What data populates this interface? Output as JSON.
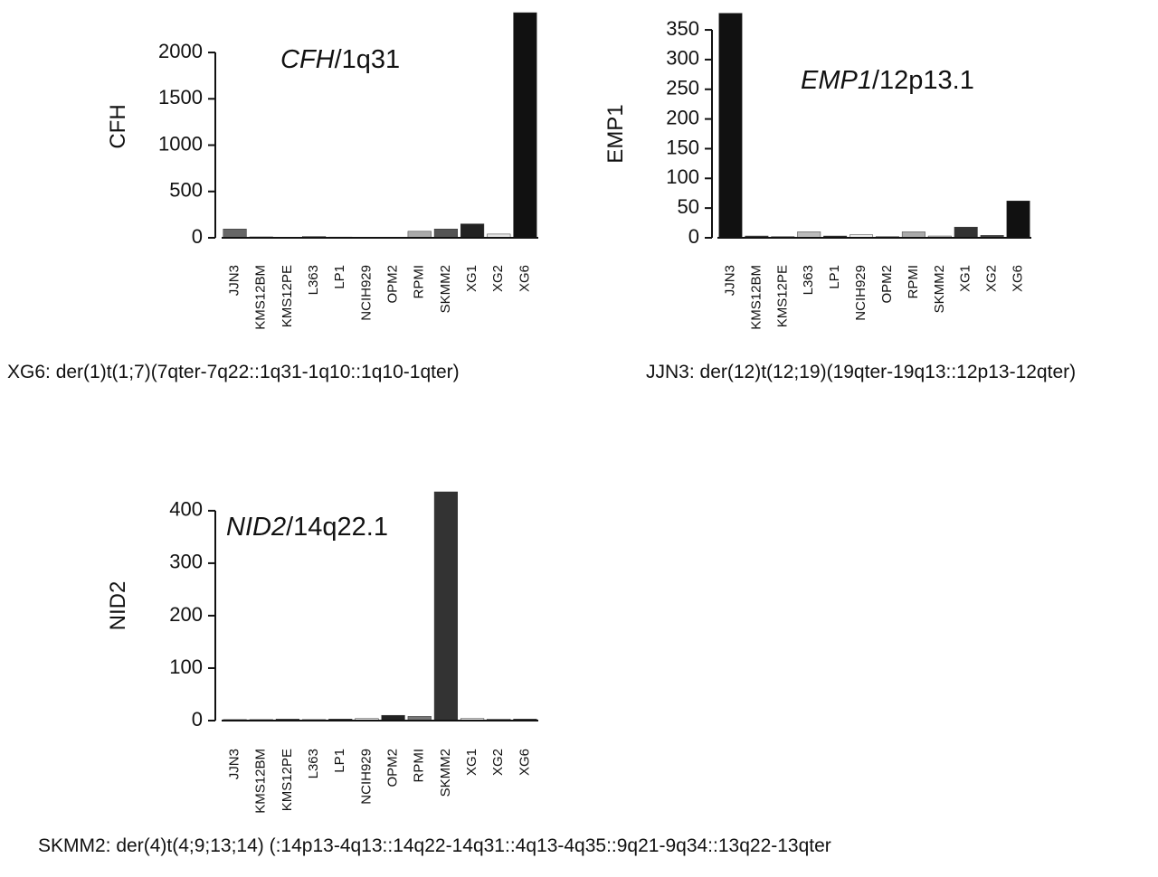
{
  "chart_data": [
    {
      "type": "bar",
      "title_italic": "CFH",
      "title_rest": "/1q31",
      "ylabel": "CFH",
      "caption": "XG6: der(1)t(1;7)(7qter-7q22::1q31-1q10::1q10-1qter)",
      "categories": [
        "JJN3",
        "KMS12BM",
        "KMS12PE",
        "L363",
        "LP1",
        "NCIH929",
        "OPM2",
        "RPMI",
        "SKMM2",
        "XG1",
        "XG2",
        "XG6"
      ],
      "values": [
        95,
        10,
        5,
        15,
        8,
        3,
        3,
        70,
        95,
        150,
        40,
        2430
      ],
      "colors": [
        "#666666",
        "#cccccc",
        "#dddddd",
        "#bbbbbb",
        "#999999",
        "#eeeeee",
        "#dddddd",
        "#aaaaaa",
        "#555555",
        "#222222",
        "#e5e5e5",
        "#111111"
      ],
      "ylim": [
        0,
        2430
      ],
      "yticks": [
        0,
        500,
        1000,
        1500,
        2000
      ]
    },
    {
      "type": "bar",
      "title_italic": "EMP1",
      "title_rest": "/12p13.1",
      "ylabel": "EMP1",
      "caption": "JJN3: der(12)t(12;19)(19qter-19q13::12p13-12qter)",
      "categories": [
        "JJN3",
        "KMS12BM",
        "KMS12PE",
        "L363",
        "LP1",
        "NCIH929",
        "OPM2",
        "RPMI",
        "SKMM2",
        "XG1",
        "XG2",
        "XG6"
      ],
      "values": [
        378,
        3,
        2,
        10,
        3,
        5,
        2,
        10,
        3,
        18,
        4,
        62
      ],
      "colors": [
        "#111111",
        "#333333",
        "#cccccc",
        "#bbbbbb",
        "#222222",
        "#eeeeee",
        "#dddddd",
        "#aaaaaa",
        "#cccccc",
        "#333333",
        "#444444",
        "#111111"
      ],
      "ylim": [
        0,
        379
      ],
      "yticks": [
        0,
        50,
        100,
        150,
        200,
        250,
        300,
        350
      ]
    },
    {
      "type": "bar",
      "title_italic": "NID2",
      "title_rest": "/14q22.1",
      "ylabel": "NID2",
      "caption": "SKMM2: der(4)t(4;9;13;14)  (:14p13-4q13::14q22-14q31::4q13-4q35::9q21-9q34::13q22-13qter",
      "categories": [
        "JJN3",
        "KMS12BM",
        "KMS12PE",
        "L363",
        "LP1",
        "NCIH929",
        "OPM2",
        "RPMI",
        "SKMM2",
        "XG1",
        "XG2",
        "XG6"
      ],
      "values": [
        2,
        2,
        3,
        2,
        3,
        4,
        10,
        8,
        436,
        4,
        3,
        3
      ],
      "colors": [
        "#cccccc",
        "#dddddd",
        "#555555",
        "#999999",
        "#444444",
        "#eeeeee",
        "#222222",
        "#777777",
        "#333333",
        "#eeeeee",
        "#bbbbbb",
        "#444444"
      ],
      "ylim": [
        0,
        436
      ],
      "yticks": [
        0,
        100,
        200,
        300,
        400
      ]
    }
  ]
}
